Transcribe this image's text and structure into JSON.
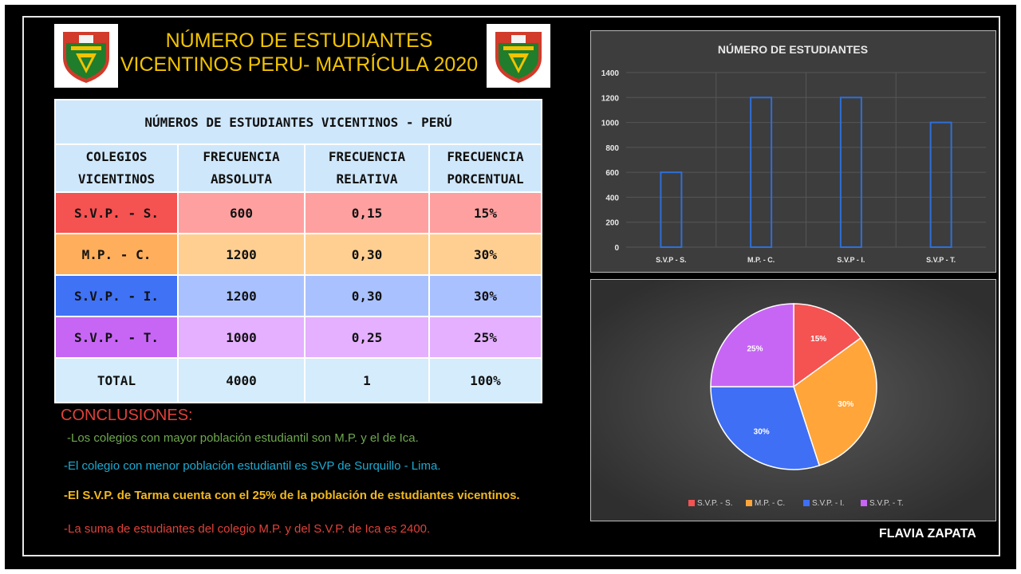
{
  "header": {
    "title_line1": "NÚMERO DE ESTUDIANTES",
    "title_line2": "VICENTINOS  PERU- MATRÍCULA 2020"
  },
  "table": {
    "title": "NÚMEROS DE ESTUDIANTES VICENTINOS - PERÚ",
    "headers": [
      {
        "line1": "COLEGIOS",
        "line2": "VICENTINOS"
      },
      {
        "line1": "FRECUENCIA",
        "line2": "ABSOLUTA"
      },
      {
        "line1": "FRECUENCIA",
        "line2": "RELATIVA"
      },
      {
        "line1": "FRECUENCIA",
        "line2": "PORCENTUAL"
      }
    ],
    "rows": [
      [
        "S.V.P. - S.",
        "600",
        "0,15",
        "15%"
      ],
      [
        "M.P. - C.",
        "1200",
        "0,30",
        "30%"
      ],
      [
        "S.V.P. - I.",
        "1200",
        "0,30",
        "30%"
      ],
      [
        "S.V.P. - T.",
        "1000",
        "0,25",
        "25%"
      ],
      [
        "TOTAL",
        "4000",
        "1",
        "100%"
      ]
    ]
  },
  "conclusions": {
    "title": "CONCLUSIONES:",
    "items": [
      "-Los colegios con mayor población estudiantil son M.P. y el de Ica.",
      "-El colegio con menor población estudiantil es SVP de Surquillo - Lima.",
      "-El S.V.P. de Tarma cuenta con el 25% de la población de estudiantes vicentinos.",
      "-La suma de estudiantes del colegio M.P.  y del S.V.P. de Ica es 2400."
    ]
  },
  "author": "FLAVIA ZAPATA",
  "colors": {
    "title": "#f2c300",
    "bar_stroke": "#2f6fd6",
    "pie": [
      "#f55252",
      "#ffa53a",
      "#3f6ff5",
      "#c766f5"
    ]
  },
  "chart_data": [
    {
      "type": "bar",
      "title": "NÚMERO DE ESTUDIANTES",
      "categories": [
        "S.V.P - S.",
        "M.P. - C.",
        "S.V.P - I.",
        "S.V.P - T."
      ],
      "values": [
        600,
        1200,
        1200,
        1000
      ],
      "ylim": [
        0,
        1400
      ],
      "yticks": [
        0,
        200,
        400,
        600,
        800,
        1000,
        1200,
        1400
      ],
      "grid": true
    },
    {
      "type": "pie",
      "labels": [
        "S.V.P. - S.",
        "M.P. - C.",
        "S.V.P. - I.",
        "S.V.P. - T."
      ],
      "values": [
        15,
        30,
        30,
        25
      ],
      "data_labels": [
        "15%",
        "30%",
        "30%",
        "25%"
      ],
      "legend": "bottom"
    }
  ]
}
